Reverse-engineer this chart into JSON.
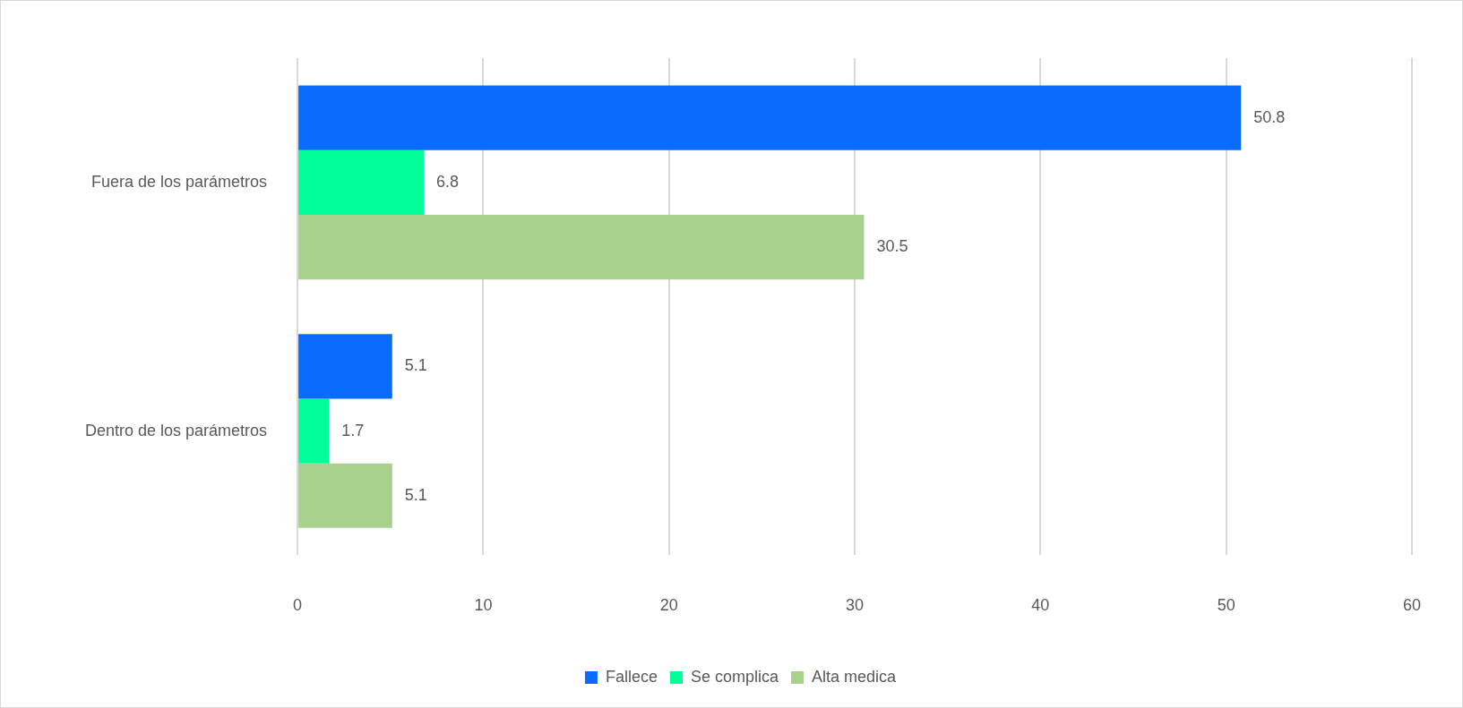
{
  "chart_data": {
    "type": "bar",
    "orientation": "horizontal",
    "categories": [
      "Fuera de los parámetros",
      "Dentro de los parámetros"
    ],
    "series": [
      {
        "name": "Fallece",
        "color": "#0a6cff",
        "values": [
          50.8,
          5.1
        ]
      },
      {
        "name": "Se complica",
        "color": "#00ff99",
        "values": [
          6.8,
          1.7
        ]
      },
      {
        "name": "Alta medica",
        "color": "#a9d18e",
        "values": [
          30.5,
          5.1
        ]
      }
    ],
    "xlim": [
      0,
      60
    ],
    "xticks": [
      0,
      10,
      20,
      30,
      40,
      50,
      60
    ],
    "grid": "x",
    "legend": "bottom",
    "data_labels": true
  }
}
